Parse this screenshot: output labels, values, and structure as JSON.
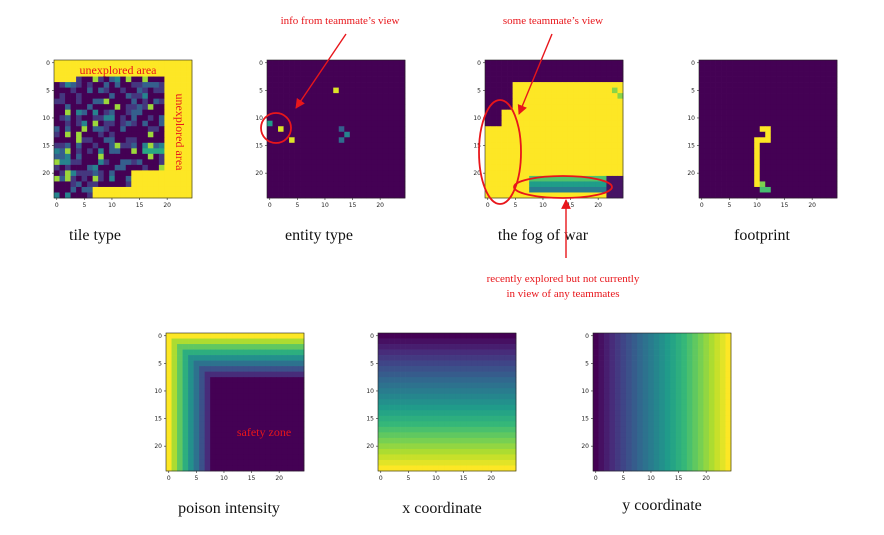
{
  "chart_data": [
    {
      "type": "heatmap",
      "id": "tile-type",
      "title": "tile type",
      "colormap": "viridis",
      "xlim": [
        0,
        24
      ],
      "ylim": [
        0,
        24
      ],
      "xticks": [
        "0",
        "5",
        "10",
        "15",
        "20"
      ],
      "yticks": [
        "0",
        "5",
        "10",
        "15",
        "20"
      ],
      "annotations": [
        "unexplored area",
        "unexplored area"
      ]
    },
    {
      "type": "heatmap",
      "id": "entity-type",
      "title": "entity type",
      "colormap": "viridis",
      "xlim": [
        0,
        24
      ],
      "ylim": [
        0,
        24
      ],
      "xticks": [
        "0",
        "5",
        "10",
        "15",
        "20"
      ],
      "yticks": [
        "0",
        "5",
        "10",
        "15",
        "20"
      ],
      "annotations": [
        "info from teammate's view"
      ]
    },
    {
      "type": "heatmap",
      "id": "fog-of-war",
      "title": "the fog of war",
      "colormap": "viridis",
      "xlim": [
        0,
        24
      ],
      "ylim": [
        0,
        24
      ],
      "xticks": [
        "0",
        "5",
        "10",
        "15",
        "20"
      ],
      "yticks": [
        "0",
        "5",
        "10",
        "15",
        "20"
      ],
      "annotations": [
        "some teammate's view",
        "recently explored but not currently",
        "in view of any teammates"
      ]
    },
    {
      "type": "heatmap",
      "id": "footprint",
      "title": "footprint",
      "colormap": "viridis",
      "xlim": [
        0,
        24
      ],
      "ylim": [
        0,
        24
      ],
      "xticks": [
        "0",
        "5",
        "10",
        "15",
        "20"
      ],
      "yticks": [
        "0",
        "5",
        "10",
        "15",
        "20"
      ],
      "annotations": []
    },
    {
      "type": "heatmap",
      "id": "poison-intensity",
      "title": "poison intensity",
      "colormap": "viridis",
      "xlim": [
        0,
        24
      ],
      "ylim": [
        0,
        24
      ],
      "xticks": [
        "0",
        "5",
        "10",
        "15",
        "20"
      ],
      "yticks": [
        "0",
        "5",
        "10",
        "15",
        "20"
      ],
      "annotations": [
        "safety zone"
      ]
    },
    {
      "type": "heatmap",
      "id": "x-coordinate",
      "title": "x coordinate",
      "colormap": "viridis",
      "xlim": [
        0,
        24
      ],
      "ylim": [
        0,
        24
      ],
      "xticks": [
        "0",
        "5",
        "10",
        "15",
        "20"
      ],
      "yticks": [
        "0",
        "5",
        "10",
        "15",
        "20"
      ],
      "annotations": []
    },
    {
      "type": "heatmap",
      "id": "y-coordinate",
      "title": "y coordinate",
      "colormap": "viridis",
      "xlim": [
        0,
        24
      ],
      "ylim": [
        0,
        24
      ],
      "xticks": [
        "0",
        "5",
        "10",
        "15",
        "20"
      ],
      "yticks": [
        "0",
        "5",
        "10",
        "15",
        "20"
      ],
      "annotations": []
    }
  ],
  "labels": {
    "tile_type": "tile type",
    "entity_type": "entity type",
    "fog_of_war": "the fog of war",
    "footprint": "footprint",
    "poison_intensity": "poison intensity",
    "x_coordinate": "x coordinate",
    "y_coordinate": "y coordinate"
  },
  "annotations": {
    "unexplored_top": "unexplored area",
    "unexplored_right": "unexplored area",
    "info_teammate": "info from teammate’s view",
    "some_teammate": "some teammate’s view",
    "recent_line1": "recently explored but not currently",
    "recent_line2": "in view of any teammates",
    "safety_zone": "safety zone"
  },
  "colors": {
    "annotation": "#e8161b",
    "viridis_dark": "#440154",
    "viridis_yellow": "#fde725"
  }
}
